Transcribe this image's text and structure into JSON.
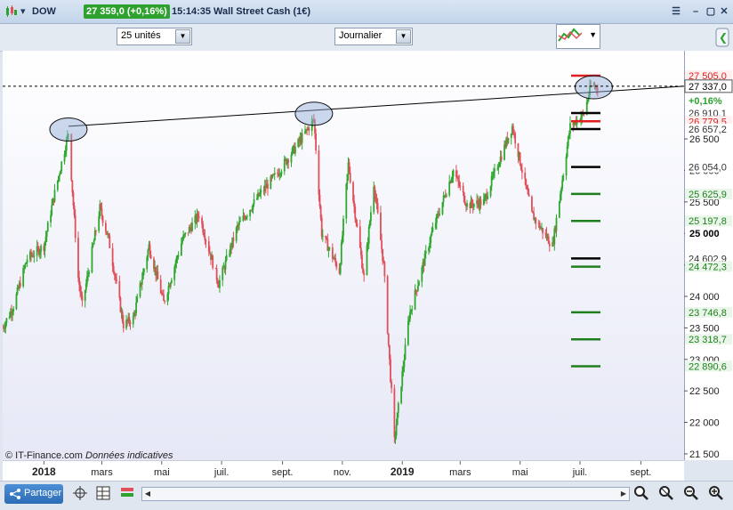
{
  "window": {
    "symbol": "DOW",
    "price_badge": "27 359,0 (+0,16%)",
    "clock": "15:14:35",
    "instrument": "Wall Street Cash (1€)"
  },
  "toolbar": {
    "units_select": "25 unités",
    "period_select": "Journalier"
  },
  "footer": {
    "copyright": "© IT-Finance.com",
    "note": "Données indicatives",
    "share_label": "Partager"
  },
  "colors": {
    "up": "#2fa82f",
    "down": "#e0505a",
    "trendline": "#000000",
    "support": "#1f7f1f",
    "resistance": "#e02020",
    "pivot": "#000000",
    "badge_green": "#2ea12e"
  },
  "chart_data": {
    "type": "candlestick",
    "y_range": [
      21400,
      27900
    ],
    "x_range": [
      "2017-11-20",
      "2019-10-15"
    ],
    "axis_ticks": [
      "21 500",
      "22 000",
      "22 500",
      "23 000",
      "23 500",
      "24 000",
      "24 500",
      "25 000",
      "25 500",
      "26 000",
      "26 500"
    ],
    "month_labels": [
      {
        "label": "2018",
        "date": "2018-01-01",
        "bold": true
      },
      {
        "label": "mars",
        "date": "2018-03-01"
      },
      {
        "label": "mai",
        "date": "2018-05-01"
      },
      {
        "label": "juil.",
        "date": "2018-07-01"
      },
      {
        "label": "sept.",
        "date": "2018-09-01"
      },
      {
        "label": "nov.",
        "date": "2018-11-01"
      },
      {
        "label": "2019",
        "date": "2019-01-01",
        "bold": true
      },
      {
        "label": "mars",
        "date": "2019-03-01"
      },
      {
        "label": "mai",
        "date": "2019-05-01"
      },
      {
        "label": "juil.",
        "date": "2019-07-01"
      },
      {
        "label": "sept.",
        "date": "2019-09-01"
      }
    ],
    "price_path": [
      [
        "2017-11-20",
        23500
      ],
      [
        "2017-12-01",
        23850
      ],
      [
        "2017-12-15",
        24600
      ],
      [
        "2018-01-01",
        24800
      ],
      [
        "2018-01-10",
        25500
      ],
      [
        "2018-01-26",
        26600
      ],
      [
        "2018-02-05",
        24300
      ],
      [
        "2018-02-09",
        23850
      ],
      [
        "2018-02-27",
        25400
      ],
      [
        "2018-03-08",
        24900
      ],
      [
        "2018-03-23",
        23550
      ],
      [
        "2018-04-02",
        23650
      ],
      [
        "2018-04-18",
        24800
      ],
      [
        "2018-05-03",
        23900
      ],
      [
        "2018-05-22",
        24900
      ],
      [
        "2018-06-08",
        25300
      ],
      [
        "2018-06-28",
        24200
      ],
      [
        "2018-07-17",
        25100
      ],
      [
        "2018-08-08",
        25600
      ],
      [
        "2018-08-29",
        26000
      ],
      [
        "2018-09-20",
        26500
      ],
      [
        "2018-10-03",
        26800
      ],
      [
        "2018-10-11",
        25000
      ],
      [
        "2018-10-29",
        24400
      ],
      [
        "2018-11-07",
        26100
      ],
      [
        "2018-11-23",
        24300
      ],
      [
        "2018-12-03",
        25800
      ],
      [
        "2018-12-13",
        24500
      ],
      [
        "2018-12-24",
        21700
      ],
      [
        "2019-01-08",
        23700
      ],
      [
        "2019-01-31",
        25000
      ],
      [
        "2019-02-22",
        26000
      ],
      [
        "2019-03-08",
        25450
      ],
      [
        "2019-03-25",
        25500
      ],
      [
        "2019-04-23",
        26700
      ],
      [
        "2019-05-13",
        25300
      ],
      [
        "2019-06-03",
        24800
      ],
      [
        "2019-06-21",
        26700
      ],
      [
        "2019-07-05",
        26900
      ],
      [
        "2019-07-12",
        27330
      ],
      [
        "2019-07-19",
        27337
      ]
    ],
    "trendline": {
      "from": [
        "2018-01-26",
        26700
      ],
      "to": [
        "2019-10-15",
        27337
      ]
    },
    "highlight_ellipses": [
      {
        "date": "2018-01-26",
        "price": 26650
      },
      {
        "date": "2018-10-03",
        "price": 26900
      },
      {
        "date": "2019-07-15",
        "price": 27320
      }
    ],
    "current_price": 27337.0,
    "levels": [
      {
        "value": 27505.0,
        "label": "27 505,0",
        "kind": "resistance"
      },
      {
        "value": 26910.1,
        "label": "26 910,1",
        "kind": "pivot"
      },
      {
        "value": 26779.5,
        "label": "26 779,5",
        "kind": "resistance"
      },
      {
        "value": 26657.2,
        "label": "26 657,2",
        "kind": "pivot"
      },
      {
        "value": 26054.0,
        "label": "26 054,0",
        "kind": "pivot"
      },
      {
        "value": 25625.9,
        "label": "25 625,9",
        "kind": "support"
      },
      {
        "value": 25197.8,
        "label": "25 197,8",
        "kind": "support"
      },
      {
        "value": 24602.9,
        "label": "24 602,9",
        "kind": "pivot"
      },
      {
        "value": 24472.3,
        "label": "24 472,3",
        "kind": "support"
      },
      {
        "value": 23746.8,
        "label": "23 746,8",
        "kind": "support"
      },
      {
        "value": 23318.7,
        "label": "23 318,7",
        "kind": "support"
      },
      {
        "value": 22890.6,
        "label": "22 890,6",
        "kind": "support"
      }
    ],
    "price_tag": {
      "label": "27 337,0",
      "value": 27337.0
    },
    "change_tag": "+0,16%",
    "highlight_tick": {
      "label": "25 000",
      "value": 25000
    }
  }
}
